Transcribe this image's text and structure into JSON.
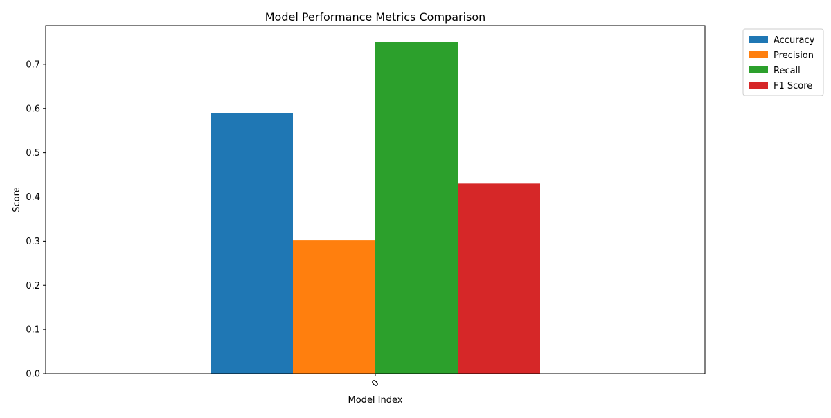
{
  "chart_data": {
    "type": "bar",
    "title": "Model Performance Metrics Comparison",
    "xlabel": "Model Index",
    "ylabel": "Score",
    "categories": [
      "0"
    ],
    "series": [
      {
        "name": "Accuracy",
        "values": [
          0.589
        ],
        "color": "#1f77b4"
      },
      {
        "name": "Precision",
        "values": [
          0.302
        ],
        "color": "#ff7f0e"
      },
      {
        "name": "Recall",
        "values": [
          0.75
        ],
        "color": "#2ca02c"
      },
      {
        "name": "F1 Score",
        "values": [
          0.43
        ],
        "color": "#d62728"
      }
    ],
    "ylim": [
      0,
      0.7875
    ],
    "yticks": [
      "0.0",
      "0.1",
      "0.2",
      "0.3",
      "0.4",
      "0.5",
      "0.6",
      "0.7"
    ],
    "grid": false,
    "legend_position": "upper-right-outside",
    "xtick_rotation": "45"
  }
}
